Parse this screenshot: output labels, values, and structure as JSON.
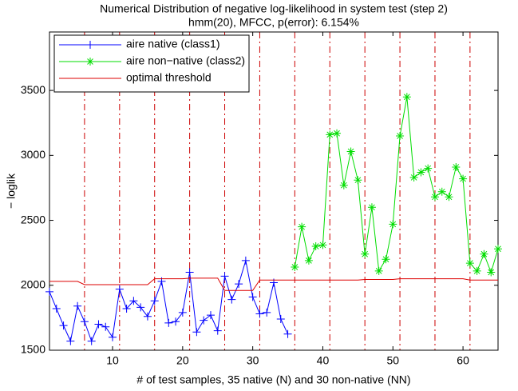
{
  "chart_data": {
    "type": "line",
    "title": "Numerical Distribution of negative log-likelihood in system test (step 2)",
    "subtitle": "hmm(20), MFCC, p(error): 6.154%",
    "xlabel": "# of test samples, 35 native (N) and 30 non-native (NN)",
    "ylabel": "− loglik",
    "xlim": [
      1,
      65
    ],
    "ylim": [
      1500,
      3950
    ],
    "xticks": [
      10,
      20,
      30,
      40,
      50,
      60
    ],
    "yticks": [
      1500,
      2000,
      2500,
      3000,
      3500
    ],
    "legend": "upper left",
    "boundaries": [
      6,
      11,
      16,
      21,
      26,
      31,
      36,
      41,
      46,
      51,
      56,
      61
    ],
    "boundary_color": "#cc0000",
    "series": [
      {
        "name": "aire native (class1)",
        "color": "#0000ff",
        "marker": "+",
        "x": [
          1,
          2,
          3,
          4,
          5,
          6,
          7,
          8,
          9,
          10,
          11,
          12,
          13,
          14,
          15,
          16,
          17,
          18,
          19,
          20,
          21,
          22,
          23,
          24,
          25,
          26,
          27,
          28,
          29,
          30,
          31,
          32,
          33,
          34,
          35
        ],
        "values": [
          1950,
          1820,
          1690,
          1570,
          1840,
          1720,
          1570,
          1700,
          1680,
          1600,
          1970,
          1820,
          1880,
          1830,
          1760,
          1880,
          2030,
          1710,
          1720,
          1790,
          2100,
          1640,
          1730,
          1770,
          1650,
          2070,
          1890,
          2010,
          2190,
          1910,
          1780,
          1790,
          2020,
          1740,
          1625
        ]
      },
      {
        "name": "aire non−native (class2)",
        "color": "#00dd00",
        "marker": "*",
        "x": [
          36,
          37,
          38,
          39,
          40,
          41,
          42,
          43,
          44,
          45,
          46,
          47,
          48,
          49,
          50,
          51,
          52,
          53,
          54,
          55,
          56,
          57,
          58,
          59,
          60,
          61,
          62,
          63,
          64,
          65
        ],
        "values": [
          2140,
          2450,
          2190,
          2300,
          2310,
          3160,
          3170,
          2770,
          3030,
          2810,
          2240,
          2600,
          2110,
          2200,
          2470,
          3150,
          3450,
          2830,
          2870,
          2900,
          2680,
          2720,
          2680,
          2910,
          2820,
          2170,
          2110,
          2240,
          2100,
          2280
        ]
      },
      {
        "name": "optimal threshold",
        "color": "#dd0000",
        "marker": "",
        "x": [
          1,
          5,
          6,
          15,
          16,
          20,
          21,
          25,
          26,
          30,
          31,
          45,
          46,
          50,
          51,
          60,
          61,
          65
        ],
        "values": [
          2030,
          2030,
          2005,
          2005,
          2050,
          2050,
          2055,
          2055,
          1960,
          1960,
          2040,
          2040,
          2045,
          2045,
          2050,
          2050,
          2040,
          2040
        ]
      }
    ]
  }
}
